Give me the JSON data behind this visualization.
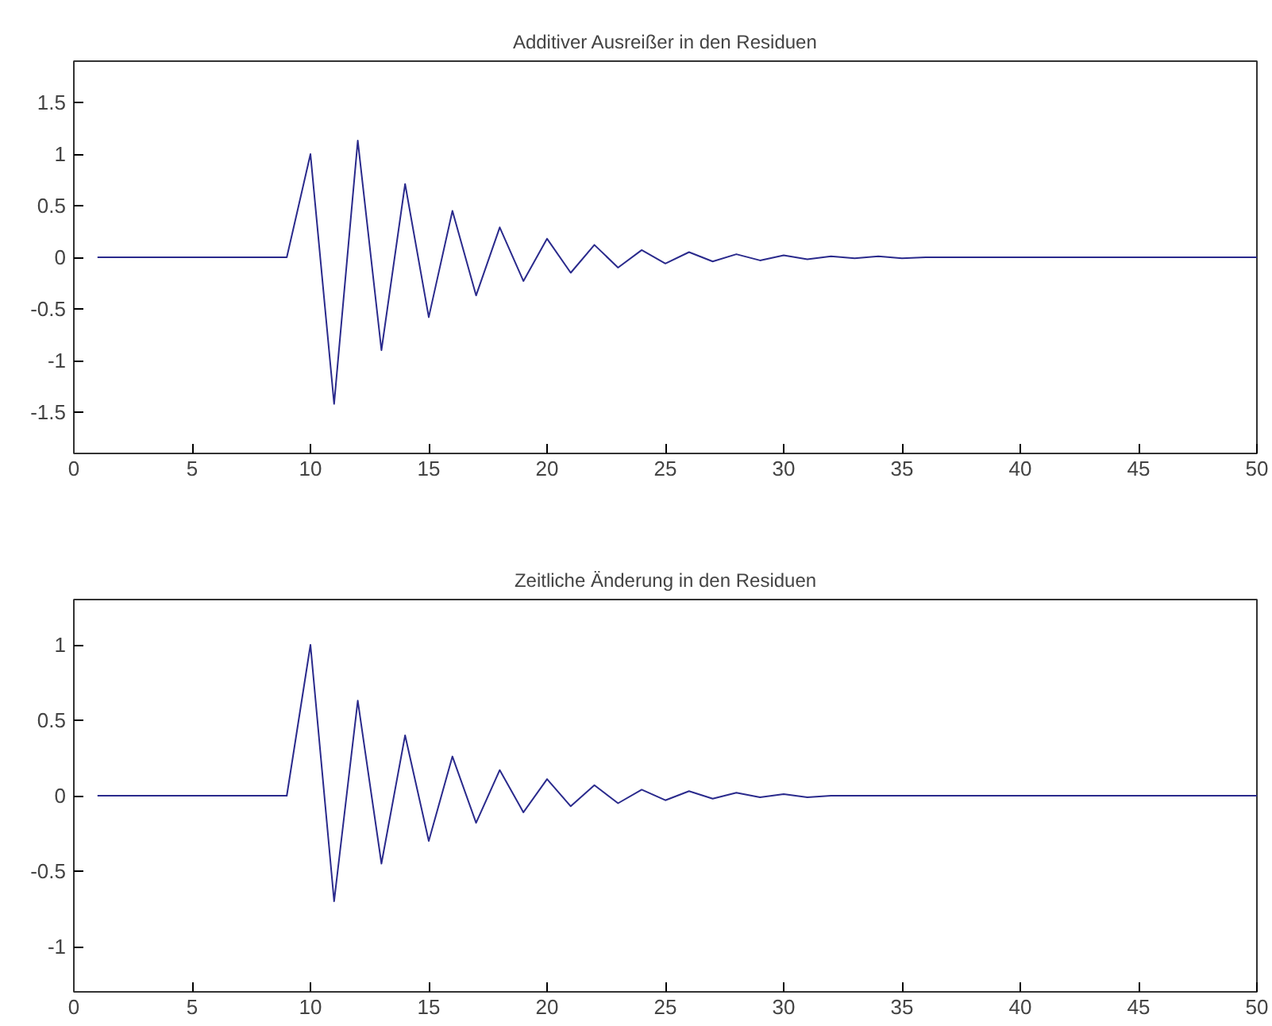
{
  "chart_data": [
    {
      "type": "line",
      "title": "Additiver Ausreißer in den Residuen",
      "x": [
        1,
        2,
        3,
        4,
        5,
        6,
        7,
        8,
        9,
        10,
        11,
        12,
        13,
        14,
        15,
        16,
        17,
        18,
        19,
        20,
        21,
        22,
        23,
        24,
        25,
        26,
        27,
        28,
        29,
        30,
        31,
        32,
        33,
        34,
        35,
        36,
        37,
        38,
        39,
        40,
        41,
        42,
        43,
        44,
        45,
        46,
        47,
        48,
        49,
        50
      ],
      "series": [
        {
          "color": "#2a2a8c",
          "values": [
            0,
            0,
            0,
            0,
            0,
            0,
            0,
            0,
            0,
            1,
            -1.42,
            1.13,
            -0.9,
            0.71,
            -0.58,
            0.45,
            -0.37,
            0.29,
            -0.23,
            0.18,
            -0.15,
            0.12,
            -0.1,
            0.07,
            -0.06,
            0.05,
            -0.04,
            0.03,
            -0.03,
            0.02,
            -0.02,
            0.01,
            -0.01,
            0.01,
            -0.01,
            0,
            0,
            0,
            0,
            0,
            0,
            0,
            0,
            0,
            0,
            0,
            0,
            0,
            0,
            0
          ]
        }
      ],
      "xlim": [
        0,
        50
      ],
      "ylim": [
        -1.9,
        1.9
      ],
      "xticks": [
        0,
        5,
        10,
        15,
        20,
        25,
        30,
        35,
        40,
        45,
        50
      ],
      "yticks": [
        -1.5,
        -1,
        -0.5,
        0,
        0.5,
        1,
        1.5
      ],
      "grid": false
    },
    {
      "type": "line",
      "title": "Zeitliche Änderung in den Residuen",
      "x": [
        1,
        2,
        3,
        4,
        5,
        6,
        7,
        8,
        9,
        10,
        11,
        12,
        13,
        14,
        15,
        16,
        17,
        18,
        19,
        20,
        21,
        22,
        23,
        24,
        25,
        26,
        27,
        28,
        29,
        30,
        31,
        32,
        33,
        34,
        35,
        36,
        37,
        38,
        39,
        40,
        41,
        42,
        43,
        44,
        45,
        46,
        47,
        48,
        49,
        50
      ],
      "series": [
        {
          "color": "#2a2a8c",
          "values": [
            0,
            0,
            0,
            0,
            0,
            0,
            0,
            0,
            0,
            1,
            -0.7,
            0.63,
            -0.45,
            0.4,
            -0.3,
            0.26,
            -0.18,
            0.17,
            -0.11,
            0.11,
            -0.07,
            0.07,
            -0.05,
            0.04,
            -0.03,
            0.03,
            -0.02,
            0.02,
            -0.01,
            0.01,
            -0.01,
            0,
            0,
            0,
            0,
            0,
            0,
            0,
            0,
            0,
            0,
            0,
            0,
            0,
            0,
            0,
            0,
            0,
            0,
            0
          ]
        }
      ],
      "xlim": [
        0,
        50
      ],
      "ylim": [
        -1.3,
        1.3
      ],
      "xticks": [
        0,
        5,
        10,
        15,
        20,
        25,
        30,
        35,
        40,
        45,
        50
      ],
      "yticks": [
        -1,
        -0.5,
        0,
        0.5,
        1
      ],
      "grid": false
    }
  ]
}
